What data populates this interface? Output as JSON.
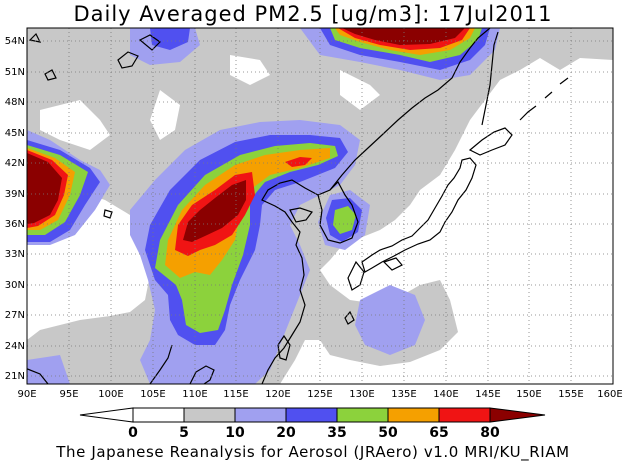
{
  "title": "Daily Averaged PM2.5 [ug/m3]: 17Jul2011",
  "footer": "The Japanese Reanalysis for Aerosol (JRAero) v1.0 MRI/KU_RIAM",
  "lat_labels": [
    "54N",
    "51N",
    "48N",
    "45N",
    "42N",
    "39N",
    "36N",
    "33N",
    "30N",
    "27N",
    "24N",
    "21N"
  ],
  "lon_labels": [
    "90E",
    "95E",
    "100E",
    "105E",
    "110E",
    "115E",
    "120E",
    "125E",
    "130E",
    "135E",
    "140E",
    "145E",
    "150E",
    "155E",
    "160E"
  ],
  "colorbar": {
    "thresholds": [
      "0",
      "5",
      "10",
      "20",
      "35",
      "50",
      "65",
      "80"
    ],
    "colors": [
      "#ffffff",
      "#c8c8c8",
      "#a0a0f0",
      "#5050f0",
      "#8cd23c",
      "#f5a000",
      "#f01414",
      "#8b0000"
    ]
  },
  "map_extent": {
    "lon": [
      90,
      160
    ],
    "lat": [
      20,
      55
    ]
  }
}
